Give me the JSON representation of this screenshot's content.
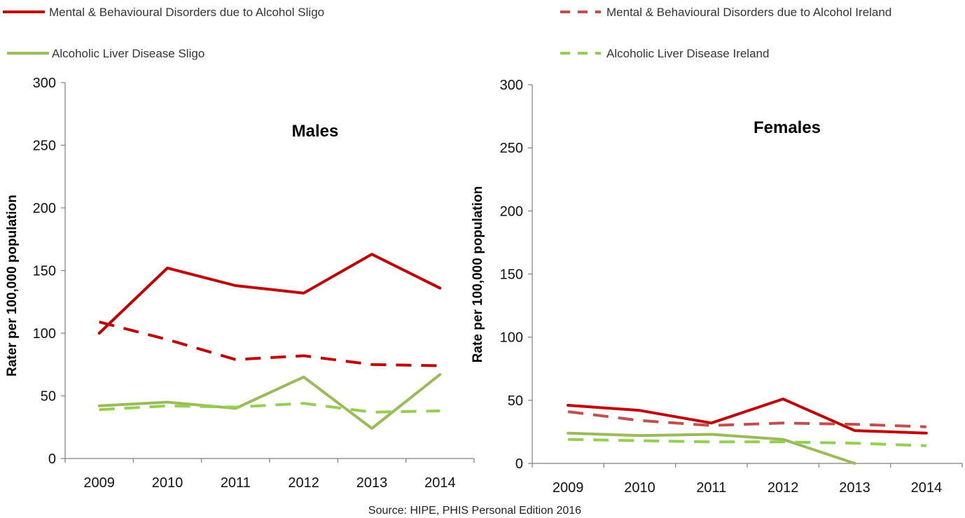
{
  "legend": [
    {
      "label": "Mental & Behavioural Disorders due to Alcohol Sligo",
      "color": "#c00000",
      "dashed": false
    },
    {
      "label": "Mental & Behavioural Disorders due to Alcohol Ireland",
      "color": "#c0504d",
      "dashed": true
    },
    {
      "label": "Alcoholic Liver Disease Sligo",
      "color": "#9bbb59",
      "dashed": false
    },
    {
      "label": "Alcoholic Liver Disease Ireland",
      "color": "#92d050",
      "dashed": true
    }
  ],
  "chart_data": [
    {
      "type": "line",
      "title": "Males",
      "ylabel": "Rater per 100,000 population",
      "xlabel": "",
      "categories": [
        "2009",
        "2010",
        "2011",
        "2012",
        "2013",
        "2014"
      ],
      "ylim": [
        0,
        300
      ],
      "yticks": [
        0,
        50,
        100,
        150,
        200,
        250,
        300
      ],
      "grid": false,
      "legend_position": "top",
      "series": [
        {
          "name": "Mental & Behavioural Disorders due to Alcohol Sligo",
          "color": "#c00000",
          "dashed": false,
          "values": [
            100,
            152,
            138,
            132,
            163,
            136
          ]
        },
        {
          "name": "Mental & Behavioural Disorders due to Alcohol Ireland",
          "color": "#c00000",
          "dashed": true,
          "values": [
            109,
            95,
            79,
            82,
            75,
            74
          ]
        },
        {
          "name": "Alcoholic Liver Disease Sligo",
          "color": "#9bbb59",
          "dashed": false,
          "values": [
            42,
            45,
            40,
            65,
            24,
            67
          ]
        },
        {
          "name": "Alcoholic Liver Disease Ireland",
          "color": "#92d050",
          "dashed": true,
          "values": [
            39,
            42,
            41,
            44,
            37,
            38
          ]
        }
      ]
    },
    {
      "type": "line",
      "title": "Females",
      "ylabel": "Rate per 100,000 population",
      "xlabel": "",
      "categories": [
        "2009",
        "2010",
        "2011",
        "2012",
        "2013",
        "2014"
      ],
      "ylim": [
        0,
        300
      ],
      "yticks": [
        0,
        50,
        100,
        150,
        200,
        250,
        300
      ],
      "grid": false,
      "legend_position": "top",
      "series": [
        {
          "name": "Mental & Behavioural Disorders due to Alcohol Sligo",
          "color": "#c00000",
          "dashed": false,
          "values": [
            46,
            42,
            32,
            51,
            26,
            24
          ]
        },
        {
          "name": "Mental & Behavioural Disorders due to Alcohol Ireland",
          "color": "#c0504d",
          "dashed": true,
          "values": [
            41,
            34,
            30,
            32,
            31,
            29
          ]
        },
        {
          "name": "Alcoholic Liver Disease Sligo",
          "color": "#9bbb59",
          "dashed": false,
          "values": [
            24,
            22,
            23,
            19,
            0,
            null
          ]
        },
        {
          "name": "Alcoholic Liver Disease Ireland",
          "color": "#92d050",
          "dashed": true,
          "values": [
            19,
            18,
            17,
            17,
            16,
            14
          ]
        }
      ]
    }
  ],
  "source": "Source:  HIPE, PHIS Personal Edition  2016"
}
